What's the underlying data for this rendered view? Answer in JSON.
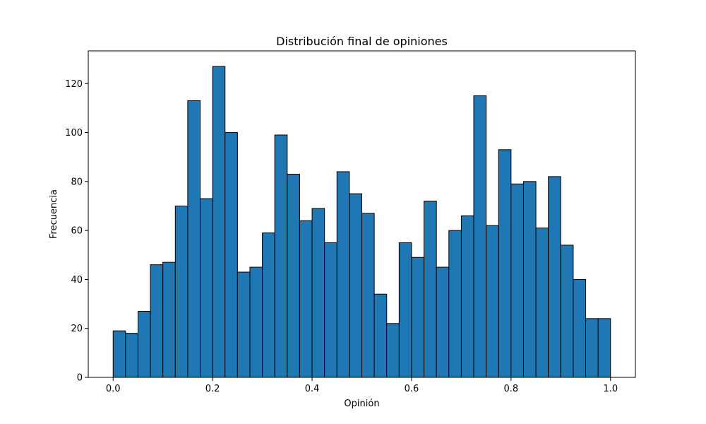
{
  "chart_data": {
    "type": "bar",
    "title": "Distribución final de opiniones",
    "xlabel": "Opinión",
    "ylabel": "Frecuencia",
    "bin_edges": [
      0.0,
      0.025,
      0.05,
      0.075,
      0.1,
      0.125,
      0.15,
      0.175,
      0.2,
      0.225,
      0.25,
      0.275,
      0.3,
      0.325,
      0.35,
      0.375,
      0.4,
      0.425,
      0.45,
      0.475,
      0.5,
      0.525,
      0.55,
      0.575,
      0.6,
      0.625,
      0.65,
      0.675,
      0.7,
      0.725,
      0.75,
      0.775,
      0.8,
      0.825,
      0.85,
      0.875,
      0.9,
      0.925,
      0.95,
      0.975,
      1.0
    ],
    "values": [
      19,
      18,
      27,
      46,
      47,
      70,
      113,
      73,
      127,
      100,
      43,
      45,
      59,
      99,
      83,
      64,
      69,
      55,
      84,
      75,
      67,
      34,
      22,
      55,
      49,
      72,
      45,
      60,
      66,
      115,
      62,
      93,
      79,
      80,
      61,
      82,
      54,
      40,
      24,
      24
    ],
    "xlim": [
      -0.05,
      1.05
    ],
    "ylim": [
      0,
      133.35
    ],
    "xticks": [
      0.0,
      0.2,
      0.4,
      0.6,
      0.8,
      1.0
    ],
    "xtick_labels": [
      "0.0",
      "0.2",
      "0.4",
      "0.6",
      "0.8",
      "1.0"
    ],
    "yticks": [
      0,
      20,
      40,
      60,
      80,
      100,
      120
    ],
    "ytick_labels": [
      "0",
      "20",
      "40",
      "60",
      "80",
      "100",
      "120"
    ],
    "grid": false,
    "legend": "none",
    "colors": {
      "bar_fill": "#1f77b4",
      "bar_edge": "#000000",
      "axis": "#000000",
      "background": "#ffffff"
    }
  }
}
